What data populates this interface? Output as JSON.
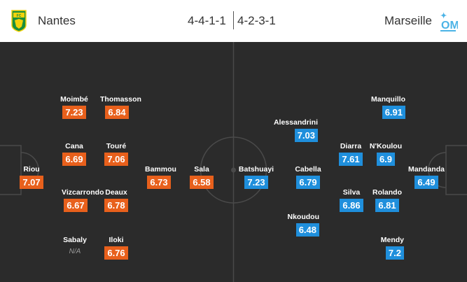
{
  "header": {
    "home_team": "Nantes",
    "away_team": "Marseille",
    "home_formation": "4-4-1-1",
    "away_formation": "4-2-3-1",
    "home_crest_icon": "nantes-crest-icon",
    "away_crest_icon": "marseille-crest-icon"
  },
  "colors": {
    "home_rating": "#e8601c",
    "away_rating": "#1f8fdc",
    "pitch": "#2b2b2b",
    "lines": "#4a4a4a"
  },
  "home_players": [
    {
      "name": "Riou",
      "rating": "7.07"
    },
    {
      "name": "Moimbé",
      "rating": "7.23"
    },
    {
      "name": "Thomasson",
      "rating": "6.84"
    },
    {
      "name": "Cana",
      "rating": "6.69"
    },
    {
      "name": "Touré",
      "rating": "7.06"
    },
    {
      "name": "Vizcarrondo",
      "rating": "6.67"
    },
    {
      "name": "Deaux",
      "rating": "6.78"
    },
    {
      "name": "Sabaly",
      "rating": "N/A"
    },
    {
      "name": "Iloki",
      "rating": "6.76"
    },
    {
      "name": "Bammou",
      "rating": "6.73"
    },
    {
      "name": "Sala",
      "rating": "6.58"
    }
  ],
  "away_players": [
    {
      "name": "Batshuayi",
      "rating": "7.23"
    },
    {
      "name": "Alessandrini",
      "rating": "7.03"
    },
    {
      "name": "Cabella",
      "rating": "6.79"
    },
    {
      "name": "Nkoudou",
      "rating": "6.48"
    },
    {
      "name": "Diarra",
      "rating": "7.61"
    },
    {
      "name": "Silva",
      "rating": "6.86"
    },
    {
      "name": "Manquillo",
      "rating": "6.91"
    },
    {
      "name": "N'Koulou",
      "rating": "6.9"
    },
    {
      "name": "Rolando",
      "rating": "6.81"
    },
    {
      "name": "Mendy",
      "rating": "7.2"
    },
    {
      "name": "Mandanda",
      "rating": "6.49"
    }
  ]
}
